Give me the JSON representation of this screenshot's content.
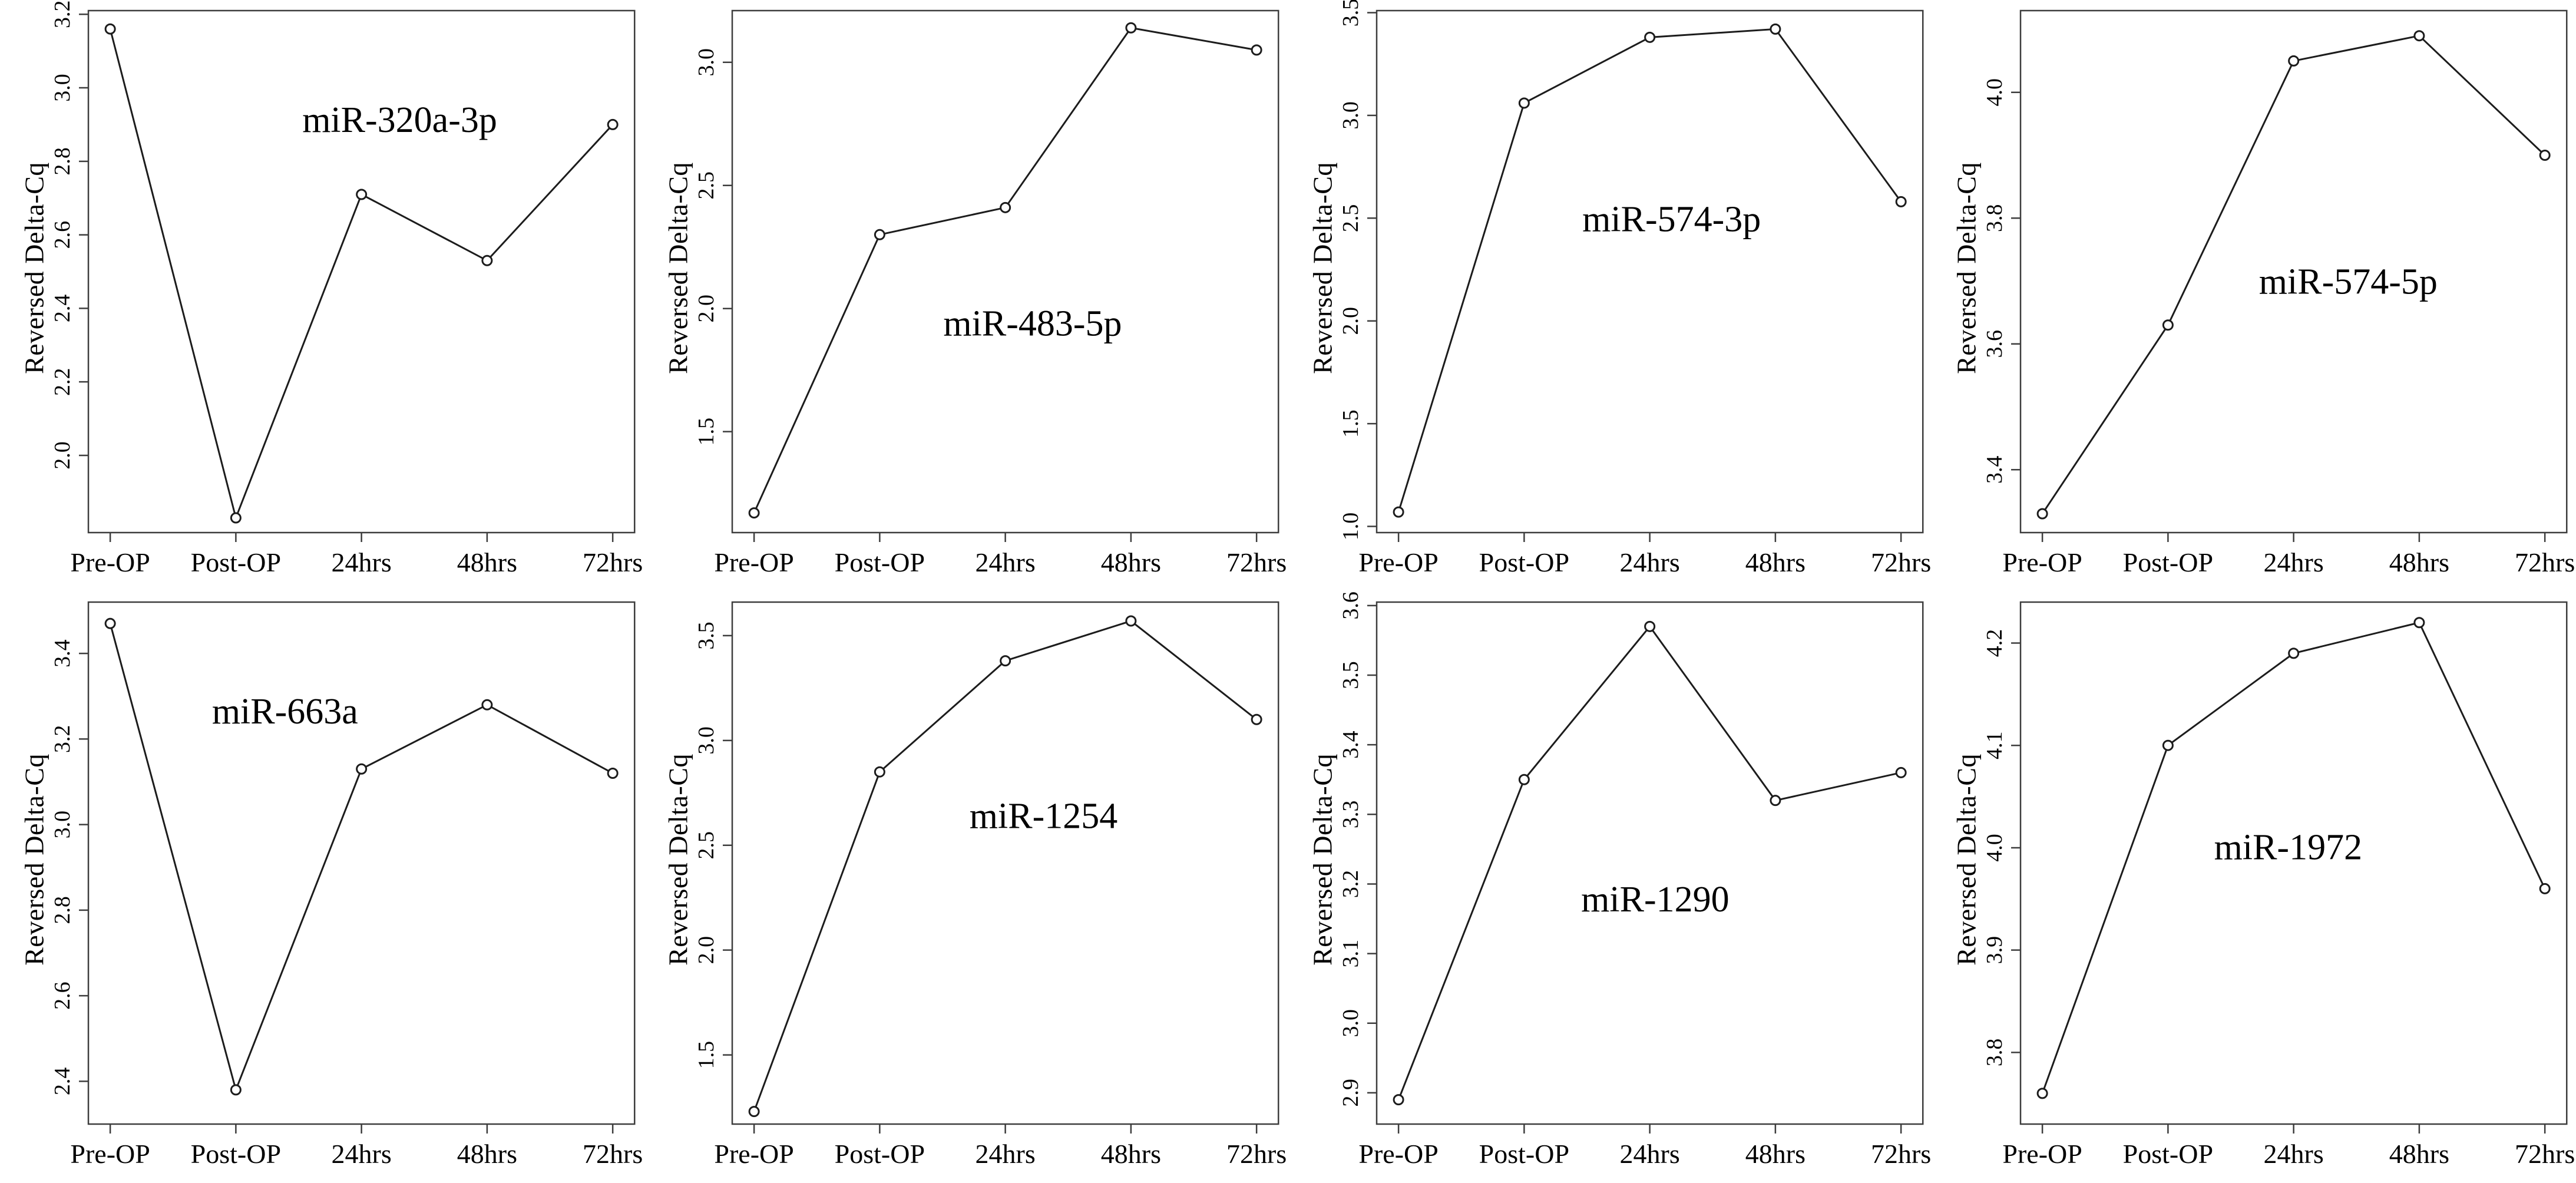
{
  "figure": {
    "background_color": "#ffffff",
    "line_color": "#1c1c1c",
    "box_color": "#3d3d3d",
    "marker_style": "open-circle",
    "marker_fill": "#ffffff",
    "panels_layout": "2 rows x 4 columns"
  },
  "chart_data": [
    {
      "type": "line",
      "title": "miR-320a-3p",
      "ylabel": "Reversed Delta-Cq",
      "categories": [
        "Pre-OP",
        "Post-OP",
        "24hrs",
        "48hrs",
        "72hrs"
      ],
      "values": [
        3.16,
        1.83,
        2.71,
        2.53,
        2.9
      ],
      "ytick_labels": [
        "2.0",
        "2.2",
        "2.4",
        "2.6",
        "2.8",
        "3.0",
        "3.2"
      ],
      "yticks": [
        2.0,
        2.2,
        2.4,
        2.6,
        2.8,
        3.0,
        3.2
      ],
      "ylim": [
        1.79,
        3.21
      ],
      "grid": "off",
      "title_pos": {
        "x": 0.57,
        "y": 0.21
      }
    },
    {
      "type": "line",
      "title": "miR-483-5p",
      "ylabel": "Reversed Delta-Cq",
      "categories": [
        "Pre-OP",
        "Post-OP",
        "24hrs",
        "48hrs",
        "72hrs"
      ],
      "values": [
        1.17,
        2.3,
        2.41,
        3.14,
        3.05
      ],
      "ytick_labels": [
        "1.5",
        "2.0",
        "2.5",
        "3.0"
      ],
      "yticks": [
        1.5,
        2.0,
        2.5,
        3.0
      ],
      "ylim": [
        1.09,
        3.21
      ],
      "grid": "off",
      "title_pos": {
        "x": 0.55,
        "y": 0.6
      }
    },
    {
      "type": "line",
      "title": "miR-574-3p",
      "ylabel": "Reversed Delta-Cq",
      "categories": [
        "Pre-OP",
        "Post-OP",
        "24hrs",
        "48hrs",
        "72hrs"
      ],
      "values": [
        1.07,
        3.06,
        3.38,
        3.42,
        2.58
      ],
      "ytick_labels": [
        "1.0",
        "1.5",
        "2.0",
        "2.5",
        "3.0",
        "3.5"
      ],
      "yticks": [
        1.0,
        1.5,
        2.0,
        2.5,
        3.0,
        3.5
      ],
      "ylim": [
        0.97,
        3.51
      ],
      "grid": "off",
      "title_pos": {
        "x": 0.54,
        "y": 0.4
      }
    },
    {
      "type": "line",
      "title": "miR-574-5p",
      "ylabel": "Reversed Delta-Cq",
      "categories": [
        "Pre-OP",
        "Post-OP",
        "24hrs",
        "48hrs",
        "72hrs"
      ],
      "values": [
        3.33,
        3.63,
        4.05,
        4.09,
        3.9
      ],
      "ytick_labels": [
        "3.4",
        "3.6",
        "3.8",
        "4.0"
      ],
      "yticks": [
        3.4,
        3.6,
        3.8,
        4.0
      ],
      "ylim": [
        3.3,
        4.13
      ],
      "grid": "off",
      "title_pos": {
        "x": 0.6,
        "y": 0.52
      }
    },
    {
      "type": "line",
      "title": "miR-663a",
      "ylabel": "Reversed Delta-Cq",
      "categories": [
        "Pre-OP",
        "Post-OP",
        "24hrs",
        "48hrs",
        "72hrs"
      ],
      "values": [
        3.47,
        2.38,
        3.13,
        3.28,
        3.12
      ],
      "ytick_labels": [
        "2.4",
        "2.6",
        "2.8",
        "3.0",
        "3.2",
        "3.4"
      ],
      "yticks": [
        2.4,
        2.6,
        2.8,
        3.0,
        3.2,
        3.4
      ],
      "ylim": [
        2.3,
        3.52
      ],
      "grid": "off",
      "title_pos": {
        "x": 0.36,
        "y": 0.21
      }
    },
    {
      "type": "line",
      "title": "miR-1254",
      "ylabel": "Reversed Delta-Cq",
      "categories": [
        "Pre-OP",
        "Post-OP",
        "24hrs",
        "48hrs",
        "72hrs"
      ],
      "values": [
        1.23,
        2.85,
        3.38,
        3.57,
        3.1
      ],
      "ytick_labels": [
        "1.5",
        "2.0",
        "2.5",
        "3.0",
        "3.5"
      ],
      "yticks": [
        1.5,
        2.0,
        2.5,
        3.0,
        3.5
      ],
      "ylim": [
        1.17,
        3.66
      ],
      "grid": "off",
      "title_pos": {
        "x": 0.57,
        "y": 0.41
      }
    },
    {
      "type": "line",
      "title": "miR-1290",
      "ylabel": "Reversed Delta-Cq",
      "categories": [
        "Pre-OP",
        "Post-OP",
        "24hrs",
        "48hrs",
        "72hrs"
      ],
      "values": [
        2.89,
        3.35,
        3.57,
        3.32,
        3.36
      ],
      "ytick_labels": [
        "2.9",
        "3.0",
        "3.1",
        "3.2",
        "3.3",
        "3.4",
        "3.5",
        "3.6"
      ],
      "yticks": [
        2.9,
        3.0,
        3.1,
        3.2,
        3.3,
        3.4,
        3.5,
        3.6
      ],
      "ylim": [
        2.855,
        3.605
      ],
      "grid": "off",
      "title_pos": {
        "x": 0.51,
        "y": 0.57
      }
    },
    {
      "type": "line",
      "title": "miR-1972",
      "ylabel": "Reversed Delta-Cq",
      "categories": [
        "Pre-OP",
        "Post-OP",
        "24hrs",
        "48hrs",
        "72hrs"
      ],
      "values": [
        3.76,
        4.1,
        4.19,
        4.22,
        3.96
      ],
      "ytick_labels": [
        "3.8",
        "3.9",
        "4.0",
        "4.1",
        "4.2"
      ],
      "yticks": [
        3.8,
        3.9,
        4.0,
        4.1,
        4.2
      ],
      "ylim": [
        3.73,
        4.24
      ],
      "grid": "off",
      "title_pos": {
        "x": 0.49,
        "y": 0.47
      }
    }
  ]
}
